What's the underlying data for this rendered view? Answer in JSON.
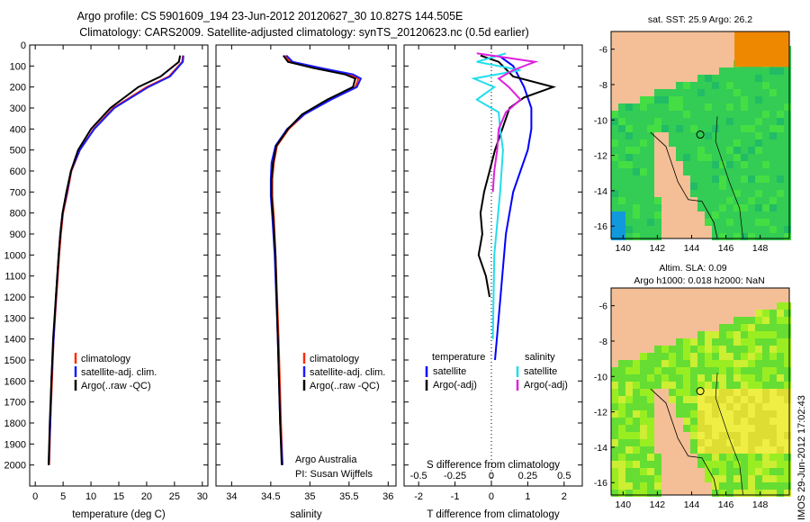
{
  "title": {
    "line1": "Argo profile: CS 5901609_194 23-Jun-2012 20120627_30 10.827S 144.505E",
    "line2": "Climatology: CARS2009. Satellite-adjusted climatology: synTS_20120623.nc (0.5d earlier)"
  },
  "legend": {
    "climatology": "climatology",
    "satellite_adj": "satellite-adj. clim.",
    "argo": "Argo(..raw -QC)",
    "diff_temp_head": "temperature",
    "diff_sal_head": "salinity",
    "satellite": "satellite",
    "argo_adj": "Argo(-adj)"
  },
  "credits": {
    "org": "Argo Australia",
    "pi": "PI: Susan Wijffels"
  },
  "stamp": "IMOS 29-Jun-2012 17:02:43",
  "colors": {
    "climatology": "#ff2a00",
    "satellite_adj": "#1a1aff",
    "argo": "#000000",
    "temp_sat": "#0000ff",
    "sal_sat": "#22ddee",
    "sal_argo": "#dd22dd",
    "land": "#f4bf96"
  },
  "maps": {
    "sst_title": "sat. SST: 25.9  Argo: 26.2",
    "sla_title1": "Altim. SLA: 0.09",
    "sla_title2": "Argo h1000: 0.018 h2000: NaN",
    "lon_ticks": [
      "140",
      "142",
      "144",
      "146",
      "148"
    ],
    "lat_ticks": [
      "-6",
      "-8",
      "-10",
      "-12",
      "-14",
      "-16"
    ],
    "float_lon": 144.505,
    "float_lat": -10.827
  },
  "chart_data": [
    {
      "type": "line",
      "id": "temperature",
      "xlabel": "temperature (deg C)",
      "ylabel": "",
      "xlim": [
        -1,
        31
      ],
      "ylim": [
        2100,
        0
      ],
      "xticks": [
        "0",
        "5",
        "10",
        "15",
        "20",
        "25",
        "30"
      ],
      "yticks": [
        "0",
        "100",
        "200",
        "300",
        "400",
        "500",
        "600",
        "700",
        "800",
        "900",
        "1000",
        "1100",
        "1200",
        "1300",
        "1400",
        "1500",
        "1600",
        "1700",
        "1800",
        "1900",
        "2000"
      ],
      "series": [
        {
          "name": "climatology",
          "depth": [
            50,
            80,
            150,
            200,
            300,
            400,
            500,
            600,
            700,
            800,
            900,
            1000,
            1200,
            1400,
            1600,
            1800,
            2000
          ],
          "values": [
            26.5,
            26.4,
            24,
            20,
            14,
            10.5,
            8,
            6.5,
            5.8,
            5,
            4.6,
            4.3,
            3.8,
            3.3,
            3,
            2.7,
            2.5
          ]
        },
        {
          "name": "satellite-adj. clim.",
          "depth": [
            50,
            80,
            150,
            200,
            300,
            400,
            500,
            600,
            700,
            800,
            900,
            1000,
            1200,
            1400,
            1600,
            1800,
            2000
          ],
          "values": [
            26.6,
            26.5,
            24.2,
            20.3,
            14.2,
            10.6,
            8,
            6.4,
            5.7,
            4.9,
            4.5,
            4.2,
            3.7,
            3.3,
            2.9,
            2.7,
            2.4
          ]
        },
        {
          "name": "Argo(..raw -QC)",
          "depth": [
            50,
            80,
            150,
            200,
            300,
            400,
            500,
            600,
            700,
            800,
            900,
            1000,
            1200,
            1400,
            1600,
            1800,
            2000
          ],
          "values": [
            26,
            25.8,
            22.5,
            18.5,
            13.5,
            10,
            7.7,
            6.4,
            5.6,
            4.9,
            4.5,
            4.2,
            3.7,
            3.2,
            2.9,
            2.6,
            2.4
          ]
        }
      ]
    },
    {
      "type": "line",
      "id": "salinity",
      "xlabel": "salinity",
      "ylabel": "",
      "xlim": [
        33.8,
        36.1
      ],
      "ylim": [
        2100,
        0
      ],
      "xticks": [
        "34",
        "34.5",
        "35",
        "35.5",
        "36"
      ],
      "series": [
        {
          "name": "climatology",
          "depth": [
            50,
            80,
            110,
            140,
            160,
            200,
            260,
            330,
            400,
            480,
            560,
            640,
            720,
            820,
            1000,
            1400,
            1800,
            2000
          ],
          "values": [
            34.68,
            34.75,
            35.1,
            35.5,
            35.62,
            35.58,
            35.25,
            34.93,
            34.73,
            34.58,
            34.54,
            34.52,
            34.52,
            34.54,
            34.56,
            34.6,
            34.63,
            34.65
          ]
        },
        {
          "name": "satellite-adj. clim.",
          "depth": [
            50,
            80,
            110,
            140,
            160,
            200,
            260,
            330,
            400,
            480,
            560,
            640,
            720,
            820,
            1000,
            1400,
            1800,
            2000
          ],
          "values": [
            34.7,
            34.78,
            35.15,
            35.55,
            35.65,
            35.6,
            35.27,
            34.93,
            34.71,
            34.56,
            34.51,
            34.5,
            34.5,
            34.52,
            34.55,
            34.59,
            34.62,
            34.65
          ]
        },
        {
          "name": "Argo(..raw -QC)",
          "depth": [
            50,
            80,
            110,
            140,
            160,
            200,
            260,
            330,
            400,
            480,
            560,
            640,
            720,
            820,
            1000,
            1400,
            1800,
            2000
          ],
          "values": [
            34.66,
            34.72,
            35.05,
            35.45,
            35.58,
            35.55,
            35.22,
            34.9,
            34.72,
            34.57,
            34.53,
            34.51,
            34.51,
            34.53,
            34.56,
            34.59,
            34.62,
            34.64
          ]
        }
      ]
    },
    {
      "type": "line",
      "id": "differences",
      "xlabel": "T difference from climatology",
      "top_label": "S difference from climatology",
      "xlim": [
        -2.4,
        2.5
      ],
      "ylim": [
        2100,
        0
      ],
      "xticks": [
        "-2",
        "-1",
        "0",
        "1",
        "2"
      ],
      "s_ticks": [
        "-0.5",
        "-0.25",
        "0",
        "0.25",
        "0.5"
      ],
      "series": [
        {
          "name": "temperature satellite",
          "depth": [
            50,
            100,
            200,
            300,
            400,
            500,
            600,
            700,
            900,
            1200,
            1500
          ],
          "values": [
            0.2,
            0.6,
            0.9,
            1.1,
            1.1,
            1,
            0.8,
            0.6,
            0.4,
            0.25,
            0.1
          ]
        },
        {
          "name": "temperature Argo(-adj)",
          "depth": [
            50,
            80,
            150,
            200,
            250,
            300,
            400,
            500,
            600,
            700,
            800,
            900,
            1000,
            1100,
            1200
          ],
          "values": [
            -0.3,
            0.2,
            0.6,
            1.7,
            0.9,
            0.5,
            0.3,
            0.1,
            -0.05,
            -0.2,
            -0.3,
            -0.25,
            -0.35,
            -0.15,
            -0.05
          ]
        },
        {
          "name": "salinity satellite",
          "depth": [
            40,
            80,
            120,
            160,
            200,
            260,
            320,
            400,
            500,
            700,
            1000,
            1400
          ],
          "values": [
            0.1,
            -0.1,
            0.2,
            -0.12,
            0.02,
            -0.1,
            0.05,
            0.06,
            0.08,
            0.06,
            0.02,
            0.01
          ]
        },
        {
          "name": "salinity Argo(-adj)",
          "depth": [
            40,
            80,
            120,
            160,
            200,
            260,
            320,
            400,
            500,
            600,
            700
          ],
          "values": [
            -0.1,
            0.3,
            0.15,
            0.05,
            0.12,
            0.2,
            0.1,
            0.05,
            0.04,
            0.02,
            0.01
          ]
        }
      ]
    }
  ]
}
